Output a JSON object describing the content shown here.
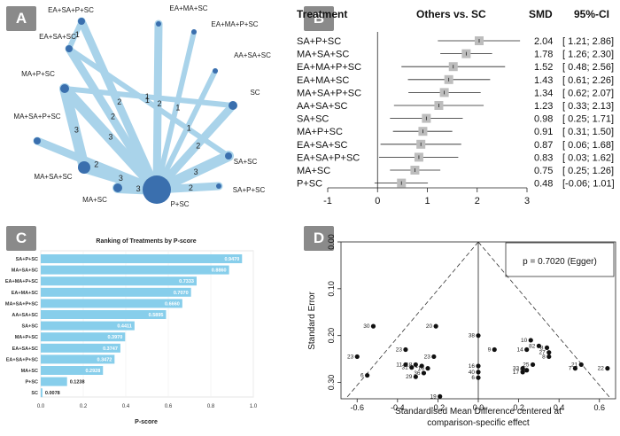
{
  "panels": {
    "a": "A",
    "b": "B",
    "c": "C",
    "d": "D"
  },
  "network": {
    "nodes": [
      {
        "id": "EA+SA+P+SC",
        "label": "EA+SA+P+SC"
      },
      {
        "id": "EA+MA+SC",
        "label": "EA+MA+SC"
      },
      {
        "id": "EA+MA+P+SC",
        "label": "EA+MA+P+SC"
      },
      {
        "id": "EA+SA+SC",
        "label": "EA+SA+SC"
      },
      {
        "id": "AA+SA+SC",
        "label": "AA+SA+SC"
      },
      {
        "id": "MA+P+SC",
        "label": "MA+P+SC"
      },
      {
        "id": "SC",
        "label": "SC"
      },
      {
        "id": "MA+SA+P+SC",
        "label": "MA+SA+P+SC"
      },
      {
        "id": "SA+SC",
        "label": "SA+SC"
      },
      {
        "id": "MA+SA+SC",
        "label": "MA+SA+SC"
      },
      {
        "id": "SA+P+SC",
        "label": "SA+P+SC"
      },
      {
        "id": "MA+SC",
        "label": "MA+SC"
      },
      {
        "id": "P+SC",
        "label": "P+SC"
      }
    ],
    "edges": [
      {
        "from": "EA+SA+P+SC",
        "to": "EA+SA+SC",
        "count": "1"
      },
      {
        "from": "EA+SA+P+SC",
        "to": "P+SC",
        "count": "2"
      },
      {
        "from": "EA+MA+SC",
        "to": "P+SC",
        "count": "2"
      },
      {
        "from": "EA+MA+P+SC",
        "to": "P+SC",
        "count": "1"
      },
      {
        "from": "EA+SA+SC",
        "to": "SA+SC",
        "count": "1"
      },
      {
        "from": "EA+SA+SC",
        "to": "P+SC",
        "count": "2"
      },
      {
        "from": "AA+SA+SC",
        "to": "P+SC",
        "count": "1"
      },
      {
        "from": "MA+P+SC",
        "to": "SC",
        "count": "1"
      },
      {
        "from": "MA+P+SC",
        "to": "P+SC",
        "count": "3"
      },
      {
        "from": "SC",
        "to": "P+SC",
        "count": "2"
      },
      {
        "from": "MA+SA+P+SC",
        "to": "P+SC",
        "count": "2"
      },
      {
        "from": "SA+SC",
        "to": "P+SC",
        "count": "3"
      },
      {
        "from": "MA+SA+SC",
        "to": "P+SC",
        "count": "3"
      },
      {
        "from": "MA+SA+SC",
        "to": "MA+P+SC",
        "count": "3"
      },
      {
        "from": "SA+P+SC",
        "to": "P+SC",
        "count": "2"
      },
      {
        "from": "MA+SC",
        "to": "P+SC",
        "count": "3"
      }
    ]
  },
  "chart_data": [
    {
      "type": "forest",
      "header": {
        "treatment": "Treatment",
        "comparison": "Others vs. SC",
        "smd": "SMD",
        "ci": "95%-CI"
      },
      "xlim": [
        -1,
        3
      ],
      "xticks": [
        "-1",
        "0",
        "1",
        "2",
        "3"
      ],
      "rows": [
        {
          "label": "SA+P+SC",
          "smd": 2.04,
          "lo": 1.21,
          "hi": 2.86,
          "smd_text": "2.04",
          "ci_text": "[ 1.21; 2.86]"
        },
        {
          "label": "MA+SA+SC",
          "smd": 1.78,
          "lo": 1.26,
          "hi": 2.3,
          "smd_text": "1.78",
          "ci_text": "[ 1.26; 2.30]"
        },
        {
          "label": "EA+MA+P+SC",
          "smd": 1.52,
          "lo": 0.48,
          "hi": 2.56,
          "smd_text": "1.52",
          "ci_text": "[ 0.48; 2.56]"
        },
        {
          "label": "EA+MA+SC",
          "smd": 1.43,
          "lo": 0.61,
          "hi": 2.26,
          "smd_text": "1.43",
          "ci_text": "[ 0.61; 2.26]"
        },
        {
          "label": "MA+SA+P+SC",
          "smd": 1.34,
          "lo": 0.62,
          "hi": 2.07,
          "smd_text": "1.34",
          "ci_text": "[ 0.62; 2.07]"
        },
        {
          "label": "AA+SA+SC",
          "smd": 1.23,
          "lo": 0.33,
          "hi": 2.13,
          "smd_text": "1.23",
          "ci_text": "[ 0.33; 2.13]"
        },
        {
          "label": "SA+SC",
          "smd": 0.98,
          "lo": 0.25,
          "hi": 1.71,
          "smd_text": "0.98",
          "ci_text": "[ 0.25; 1.71]"
        },
        {
          "label": "MA+P+SC",
          "smd": 0.91,
          "lo": 0.31,
          "hi": 1.5,
          "smd_text": "0.91",
          "ci_text": "[ 0.31; 1.50]"
        },
        {
          "label": "EA+SA+SC",
          "smd": 0.87,
          "lo": 0.06,
          "hi": 1.68,
          "smd_text": "0.87",
          "ci_text": "[ 0.06; 1.68]"
        },
        {
          "label": "EA+SA+P+SC",
          "smd": 0.83,
          "lo": 0.03,
          "hi": 1.62,
          "smd_text": "0.83",
          "ci_text": "[ 0.03; 1.62]"
        },
        {
          "label": "MA+SC",
          "smd": 0.75,
          "lo": 0.25,
          "hi": 1.26,
          "smd_text": "0.75",
          "ci_text": "[ 0.25; 1.26]"
        },
        {
          "label": "P+SC",
          "smd": 0.48,
          "lo": -0.06,
          "hi": 1.01,
          "smd_text": "0.48",
          "ci_text": "[-0.06; 1.01]"
        }
      ]
    },
    {
      "type": "bar",
      "orientation": "horizontal",
      "title": "Ranking of Treatments by P-score",
      "xlabel": "P-score",
      "xlim": [
        0,
        1
      ],
      "xticks": [
        "0.0",
        "0.2",
        "0.4",
        "0.6",
        "0.8",
        "1.0"
      ],
      "categories": [
        "SA+P+SC",
        "MA+SA+SC",
        "EA+MA+P+SC",
        "EA+MA+SC",
        "MA+SA+P+SC",
        "AA+SA+SC",
        "SA+SC",
        "MA+P+SC",
        "EA+SA+SC",
        "EA+SA+P+SC",
        "MA+SC",
        "P+SC",
        "SC"
      ],
      "values": [
        0.947,
        0.886,
        0.7333,
        0.707,
        0.666,
        0.5895,
        0.4411,
        0.397,
        0.3747,
        0.3472,
        0.2928,
        0.1238,
        0.0078
      ],
      "value_labels": [
        "0.9470",
        "0.8860",
        "0.7333",
        "0.7070",
        "0.6660",
        "0.5895",
        "0.4411",
        "0.3970",
        "0.3747",
        "0.3472",
        "0.2928",
        "0.1238",
        "0.0078"
      ]
    },
    {
      "type": "scatter",
      "subtype": "funnel",
      "xlabel_lines": [
        "Standardised Mean Difference centered at",
        "comparison-specific effect"
      ],
      "ylabel": "Standard Error",
      "xlim": [
        -0.68,
        0.68
      ],
      "ylim": [
        0.0,
        0.335
      ],
      "xticks": [
        "-0.6",
        "-0.4",
        "-0.2",
        "0.0",
        "0.2",
        "0.4",
        "0.6"
      ],
      "yticks": [
        "0.00",
        "0.10",
        "0.20",
        "0.30"
      ],
      "annotation": "p = 0.7020 (Egger)",
      "points": [
        {
          "x": -0.52,
          "y": 0.18,
          "label": "30"
        },
        {
          "x": -0.21,
          "y": 0.18,
          "label": "20"
        },
        {
          "x": 0.0,
          "y": 0.2,
          "label": "38"
        },
        {
          "x": -0.36,
          "y": 0.23,
          "label": "23"
        },
        {
          "x": -0.6,
          "y": 0.245,
          "label": "23"
        },
        {
          "x": -0.22,
          "y": 0.245,
          "label": "23"
        },
        {
          "x": -0.55,
          "y": 0.285,
          "label": "6"
        },
        {
          "x": -0.36,
          "y": 0.262,
          "label": "11"
        },
        {
          "x": -0.33,
          "y": 0.268,
          "label": "31"
        },
        {
          "x": -0.31,
          "y": 0.262,
          "label": "18"
        },
        {
          "x": -0.28,
          "y": 0.265,
          "label": "1"
        },
        {
          "x": -0.25,
          "y": 0.27,
          "label": "16"
        },
        {
          "x": -0.27,
          "y": 0.28,
          "label": "36"
        },
        {
          "x": -0.31,
          "y": 0.288,
          "label": "29"
        },
        {
          "x": 0.0,
          "y": 0.265,
          "label": "16"
        },
        {
          "x": 0.0,
          "y": 0.278,
          "label": "40"
        },
        {
          "x": 0.0,
          "y": 0.29,
          "label": "6"
        },
        {
          "x": -0.19,
          "y": 0.33,
          "label": "19"
        },
        {
          "x": 0.08,
          "y": 0.23,
          "label": "9"
        },
        {
          "x": 0.26,
          "y": 0.21,
          "label": "10"
        },
        {
          "x": 0.3,
          "y": 0.222,
          "label": "82"
        },
        {
          "x": 0.24,
          "y": 0.23,
          "label": "14"
        },
        {
          "x": 0.34,
          "y": 0.226,
          "label": "8"
        },
        {
          "x": 0.35,
          "y": 0.236,
          "label": "27"
        },
        {
          "x": 0.35,
          "y": 0.245,
          "label": "8"
        },
        {
          "x": 0.27,
          "y": 0.262,
          "label": "25"
        },
        {
          "x": 0.22,
          "y": 0.27,
          "label": "33"
        },
        {
          "x": 0.24,
          "y": 0.274,
          "label": "5"
        },
        {
          "x": 0.22,
          "y": 0.278,
          "label": "17"
        },
        {
          "x": 0.51,
          "y": 0.262,
          "label": "21"
        },
        {
          "x": 0.48,
          "y": 0.27,
          "label": "7"
        },
        {
          "x": 0.64,
          "y": 0.27,
          "label": "22"
        }
      ]
    }
  ]
}
